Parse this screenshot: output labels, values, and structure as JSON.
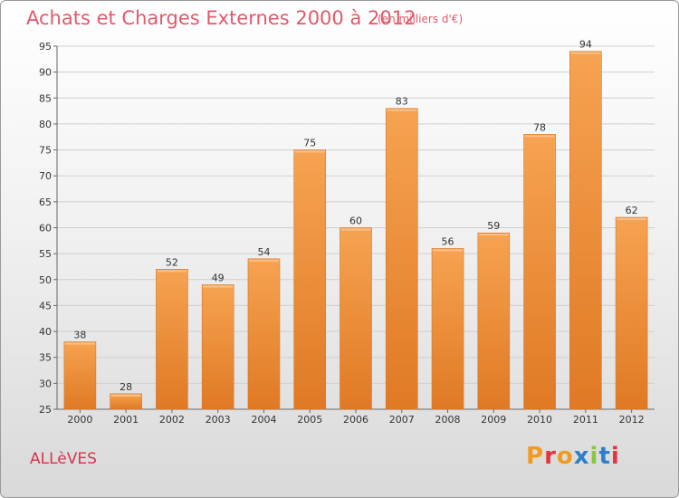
{
  "header": {
    "title": "Achats et Charges Externes 2000 à 2012",
    "unit": "(en milliers d'€)"
  },
  "footer": {
    "commune": "ALLèVES",
    "logo_text": "Proxiti",
    "logo_colors": [
      "#f29a1f",
      "#e5343d",
      "#f29a1f",
      "#2e80c8",
      "#8cc63f",
      "#2e80c8",
      "#e5343d"
    ]
  },
  "colors": {
    "bar_light": "#f6a351",
    "bar_dark": "#e07924",
    "title": "#e05a6c",
    "grid": "#cfcfcf"
  },
  "chart_data": {
    "type": "bar",
    "title": "Achats et Charges Externes 2000 à 2012",
    "subtitle": "(en milliers d'€)",
    "categories": [
      "2000",
      "2001",
      "2002",
      "2003",
      "2004",
      "2005",
      "2006",
      "2007",
      "2008",
      "2009",
      "2010",
      "2011",
      "2012"
    ],
    "values": [
      38,
      28,
      52,
      49,
      54,
      75,
      60,
      83,
      56,
      59,
      78,
      94,
      62
    ],
    "ylim": [
      25,
      95
    ],
    "yticks": [
      25,
      30,
      35,
      40,
      45,
      50,
      55,
      60,
      65,
      70,
      75,
      80,
      85,
      90,
      95
    ],
    "grid": true,
    "xlabel": "",
    "ylabel": ""
  }
}
